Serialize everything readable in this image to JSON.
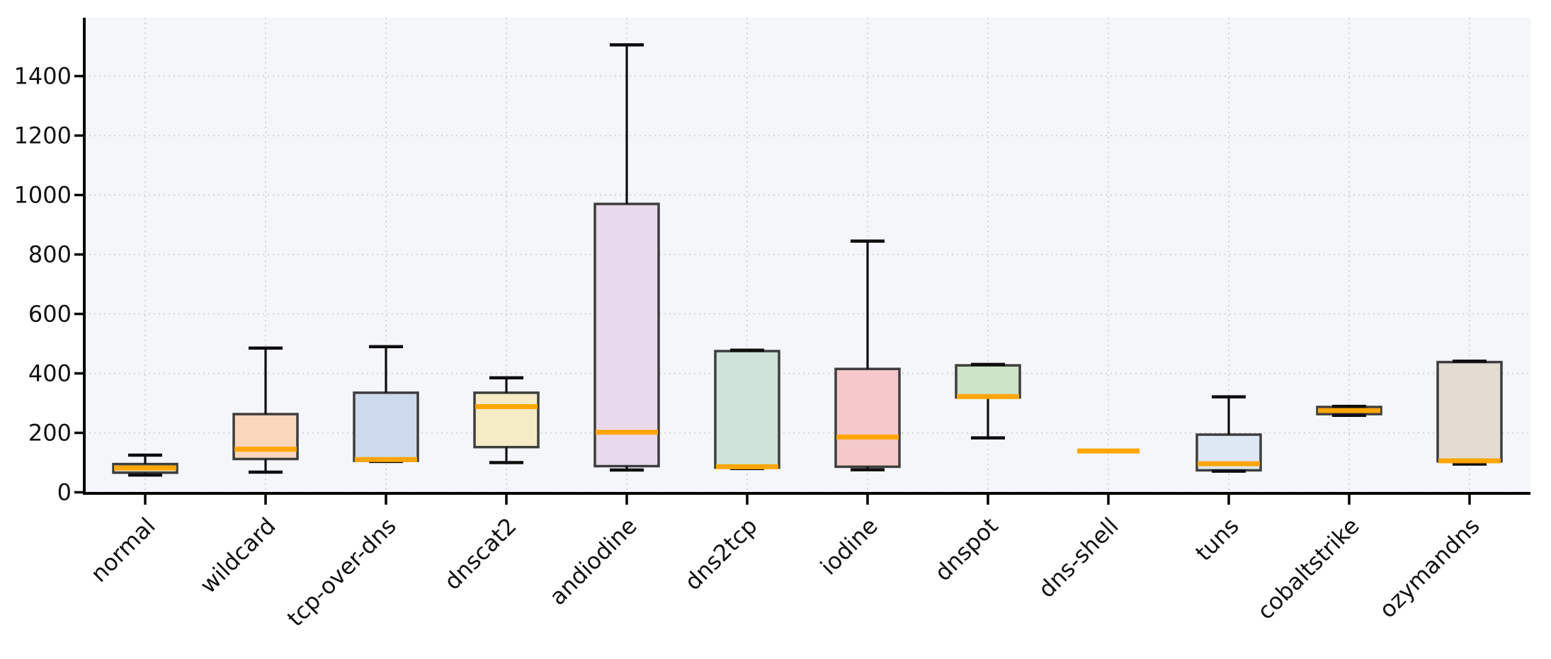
{
  "figure": {
    "title": "",
    "background": "#ffffff"
  },
  "chart_data": {
    "type": "boxplot",
    "title": "",
    "xlabel": "",
    "ylabel": "",
    "grid": "dotted, both axes",
    "legend": "none",
    "plot_bg": "#f5f6fa",
    "grid_color": "#d3d3d8",
    "spine_color": "#000000",
    "median_color": "#ffa505",
    "box_edge_color": "#3d3d3d",
    "whisker_color": "#0d0d0d",
    "tick_label_color": "#111111",
    "ylim": [
      0,
      1596
    ],
    "yticks": [
      0,
      200,
      400,
      600,
      800,
      1000,
      1200,
      1400
    ],
    "xtick_rotation_deg": 45,
    "categories": [
      "normal",
      "wildcard",
      "tcp-over-dns",
      "dnscat2",
      "andiodine",
      "dns2tcp",
      "iodine",
      "dnspot",
      "dns-shell",
      "tuns",
      "cobaltstrike",
      "ozymandns"
    ],
    "boxes": [
      {
        "label": "normal",
        "fill": "#ddd6ab",
        "min": 58,
        "q1": 66,
        "median": 82,
        "q3": 95,
        "max": 125
      },
      {
        "label": "wildcard",
        "fill": "#fad6bd",
        "min": 68,
        "q1": 112,
        "median": 145,
        "q3": 263,
        "max": 485
      },
      {
        "label": "tcp-over-dns",
        "fill": "#cdd9ed",
        "min": 104,
        "q1": 106,
        "median": 110,
        "q3": 335,
        "max": 490
      },
      {
        "label": "dnscat2",
        "fill": "#f5ecc6",
        "min": 100,
        "q1": 152,
        "median": 288,
        "q3": 335,
        "max": 385
      },
      {
        "label": "andiodine",
        "fill": "#e8d9ec",
        "min": 75,
        "q1": 88,
        "median": 202,
        "q3": 970,
        "max": 1505
      },
      {
        "label": "dns2tcp",
        "fill": "#cfe3d8",
        "min": 80,
        "q1": 83,
        "median": 86,
        "q3": 475,
        "max": 478
      },
      {
        "label": "iodine",
        "fill": "#f5c9cb",
        "min": 76,
        "q1": 86,
        "median": 186,
        "q3": 415,
        "max": 845
      },
      {
        "label": "dnspot",
        "fill": "#cde4c6",
        "min": 183,
        "q1": 319,
        "median": 322,
        "q3": 427,
        "max": 430
      },
      {
        "label": "dns-shell",
        "fill": "#e8e8e8",
        "min": 139,
        "q1": 139,
        "median": 139,
        "q3": 139,
        "max": 139
      },
      {
        "label": "tuns",
        "fill": "#dde8f3",
        "min": 71,
        "q1": 74,
        "median": 96,
        "q3": 194,
        "max": 321
      },
      {
        "label": "cobaltstrike",
        "fill": "#f6dcba",
        "min": 259,
        "q1": 263,
        "median": 275,
        "q3": 287,
        "max": 289
      },
      {
        "label": "ozymandns",
        "fill": "#e3dcd2",
        "min": 95,
        "q1": 104,
        "median": 106,
        "q3": 438,
        "max": 441
      }
    ]
  }
}
